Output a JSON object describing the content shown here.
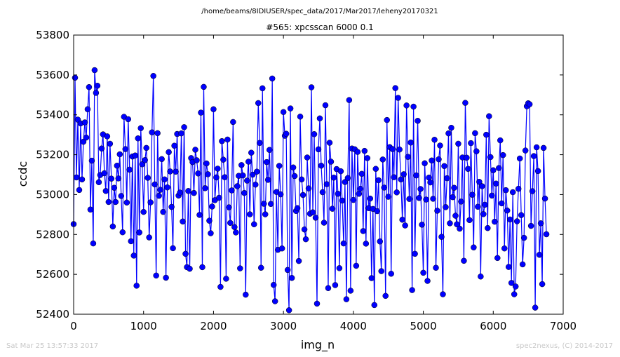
{
  "header": {
    "path": "/home/beams/8IDIUSER/spec_data/2017/Mar2017/leheny20170321"
  },
  "footer": {
    "timestamp": "Sat Mar 25 13:57:33 2017",
    "credit": "spec2nexus, (C) 2014-2017"
  },
  "chart_data": {
    "type": "line",
    "title": "#565: xpcsscan 6000 0.1",
    "xlabel": "img_n",
    "ylabel": "ccdc",
    "xlim": [
      0,
      7000
    ],
    "ylim": [
      52400,
      53800
    ],
    "xticks": [
      0,
      1000,
      2000,
      3000,
      4000,
      5000,
      6000,
      7000
    ],
    "yticks": [
      52400,
      52600,
      52800,
      53000,
      53200,
      53400,
      53600,
      53800
    ],
    "grid": false,
    "legend": "none",
    "color": "#0000ff",
    "marker": "circle",
    "x_start": 0,
    "x_step": 20,
    "values": [
      52852,
      53586,
      53086,
      53376,
      53023,
      53357,
      53076,
      53265,
      53362,
      53286,
      53428,
      53539,
      52925,
      53170,
      52755,
      53624,
      53510,
      53546,
      53062,
      53098,
      53231,
      53302,
      53107,
      53018,
      53292,
      52963,
      53255,
      53080,
      52840,
      53034,
      52963,
      53145,
      53081,
      53202,
      52993,
      52811,
      53390,
      53228,
      52960,
      53378,
      53125,
      52766,
      53191,
      52694,
      53196,
      52543,
      53282,
      52810,
      53333,
      53152,
      52913,
      53173,
      53234,
      53084,
      52785,
      52961,
      53312,
      53595,
      53051,
      52594,
      53308,
      52994,
      53024,
      53178,
      52913,
      53076,
      52583,
      53036,
      53213,
      53116,
      52938,
      52731,
      53245,
      53115,
      53304,
      52995,
      53010,
      53307,
      52865,
      53338,
      52703,
      52636,
      53018,
      52628,
      53183,
      53163,
      53008,
      53225,
      53172,
      53106,
      52898,
      53411,
      52636,
      53540,
      53032,
      53156,
      53102,
      52869,
      52806,
      52940,
      53428,
      52972,
      53086,
      53130,
      52984,
      52537,
      53268,
      53175,
      53087,
      52578,
      53276,
      52936,
      52858,
      53021,
      53364,
      52837,
      52810,
      53042,
      53094,
      52630,
      53148,
      53096,
      53008,
      52498,
      53070,
      53165,
      52901,
      53210,
      53100,
      52851,
      53050,
      53115,
      53459,
      53259,
      52633,
      53533,
      52954,
      52901,
      53163,
      53074,
      53224,
      52953,
      53582,
      52547,
      52465,
      53013,
      52723,
      53144,
      53001,
      52730,
      53414,
      53295,
      53305,
      52622,
      52420,
      53432,
      52582,
      53136,
      53093,
      52918,
      52932,
      52667,
      53391,
      53076,
      52998,
      52825,
      52776,
      53186,
      53031,
      52904,
      53538,
      52911,
      53303,
      52884,
      52453,
      53227,
      53382,
      53145,
      53012,
      52859,
      53448,
      53052,
      52531,
      53260,
      53165,
      52929,
      53085,
      52546,
      53128,
      53004,
      52631,
      53117,
      52970,
      52755,
      53063,
      52475,
      53083,
      53474,
      52518,
      53231,
      52973,
      53227,
      52643,
      53214,
      53004,
      53029,
      53104,
      52817,
      53219,
      52754,
      53183,
      52932,
      52980,
      52581,
      52928,
      52446,
      53129,
      52917,
      53072,
      52765,
      52616,
      53176,
      53035,
      52492,
      53374,
      52989,
      53238,
      52603,
      53228,
      53087,
      53534,
      53011,
      53485,
      53226,
      53076,
      52874,
      53102,
      52845,
      53447,
      53189,
      52978,
      53261,
      52521,
      53441,
      52703,
      53096,
      53370,
      52983,
      53028,
      52849,
      52608,
      53157,
      52975,
      52567,
      53085,
      53061,
      53171,
      52979,
      53275,
      52633,
      52919,
      53177,
      53246,
      52788,
      52500,
      53143,
      52937,
      53082,
      53307,
      52856,
      53335,
      52987,
      53034,
      52894,
      52851,
      53255,
      52829,
      52965,
      53186,
      52668,
      53460,
      53185,
      53129,
      52872,
      53258,
      52999,
      52735,
      53308,
      53217,
      52939,
      53064,
      52589,
      53042,
      52902,
      52949,
      53300,
      52832,
      53393,
      53188,
      52995,
      53122,
      52864,
      53055,
      52682,
      53133,
      53272,
      52956,
      53198,
      52730,
      53022,
      52920,
      52637,
      52875,
      52557,
      53012,
      52500,
      52539,
      52866,
      53029,
      53181,
      52897,
      52650,
      52783,
      53221,
      53443,
      53458,
      53453,
      52843,
      53017,
      53193,
      52433,
      53237,
      53118,
      52698,
      52856,
      52551,
      53234,
      52980,
      52801
    ],
    "series": []
  }
}
